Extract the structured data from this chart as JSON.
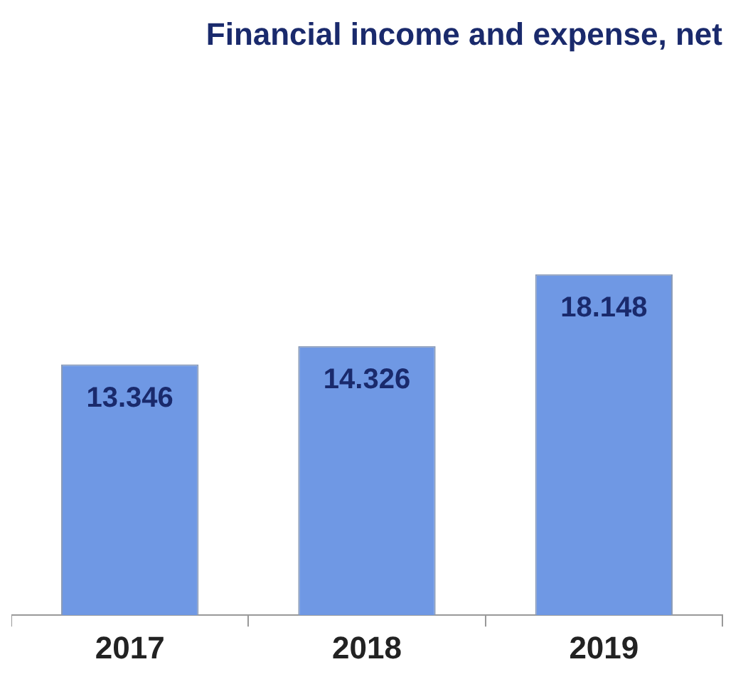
{
  "chart_data": {
    "type": "bar",
    "title": "Financial income and expense, net",
    "categories": [
      "2017",
      "2018",
      "2019"
    ],
    "values": [
      13.346,
      14.326,
      18.148
    ],
    "color": "#6f98e4",
    "data_labels": true,
    "grid": false,
    "legend": false
  }
}
